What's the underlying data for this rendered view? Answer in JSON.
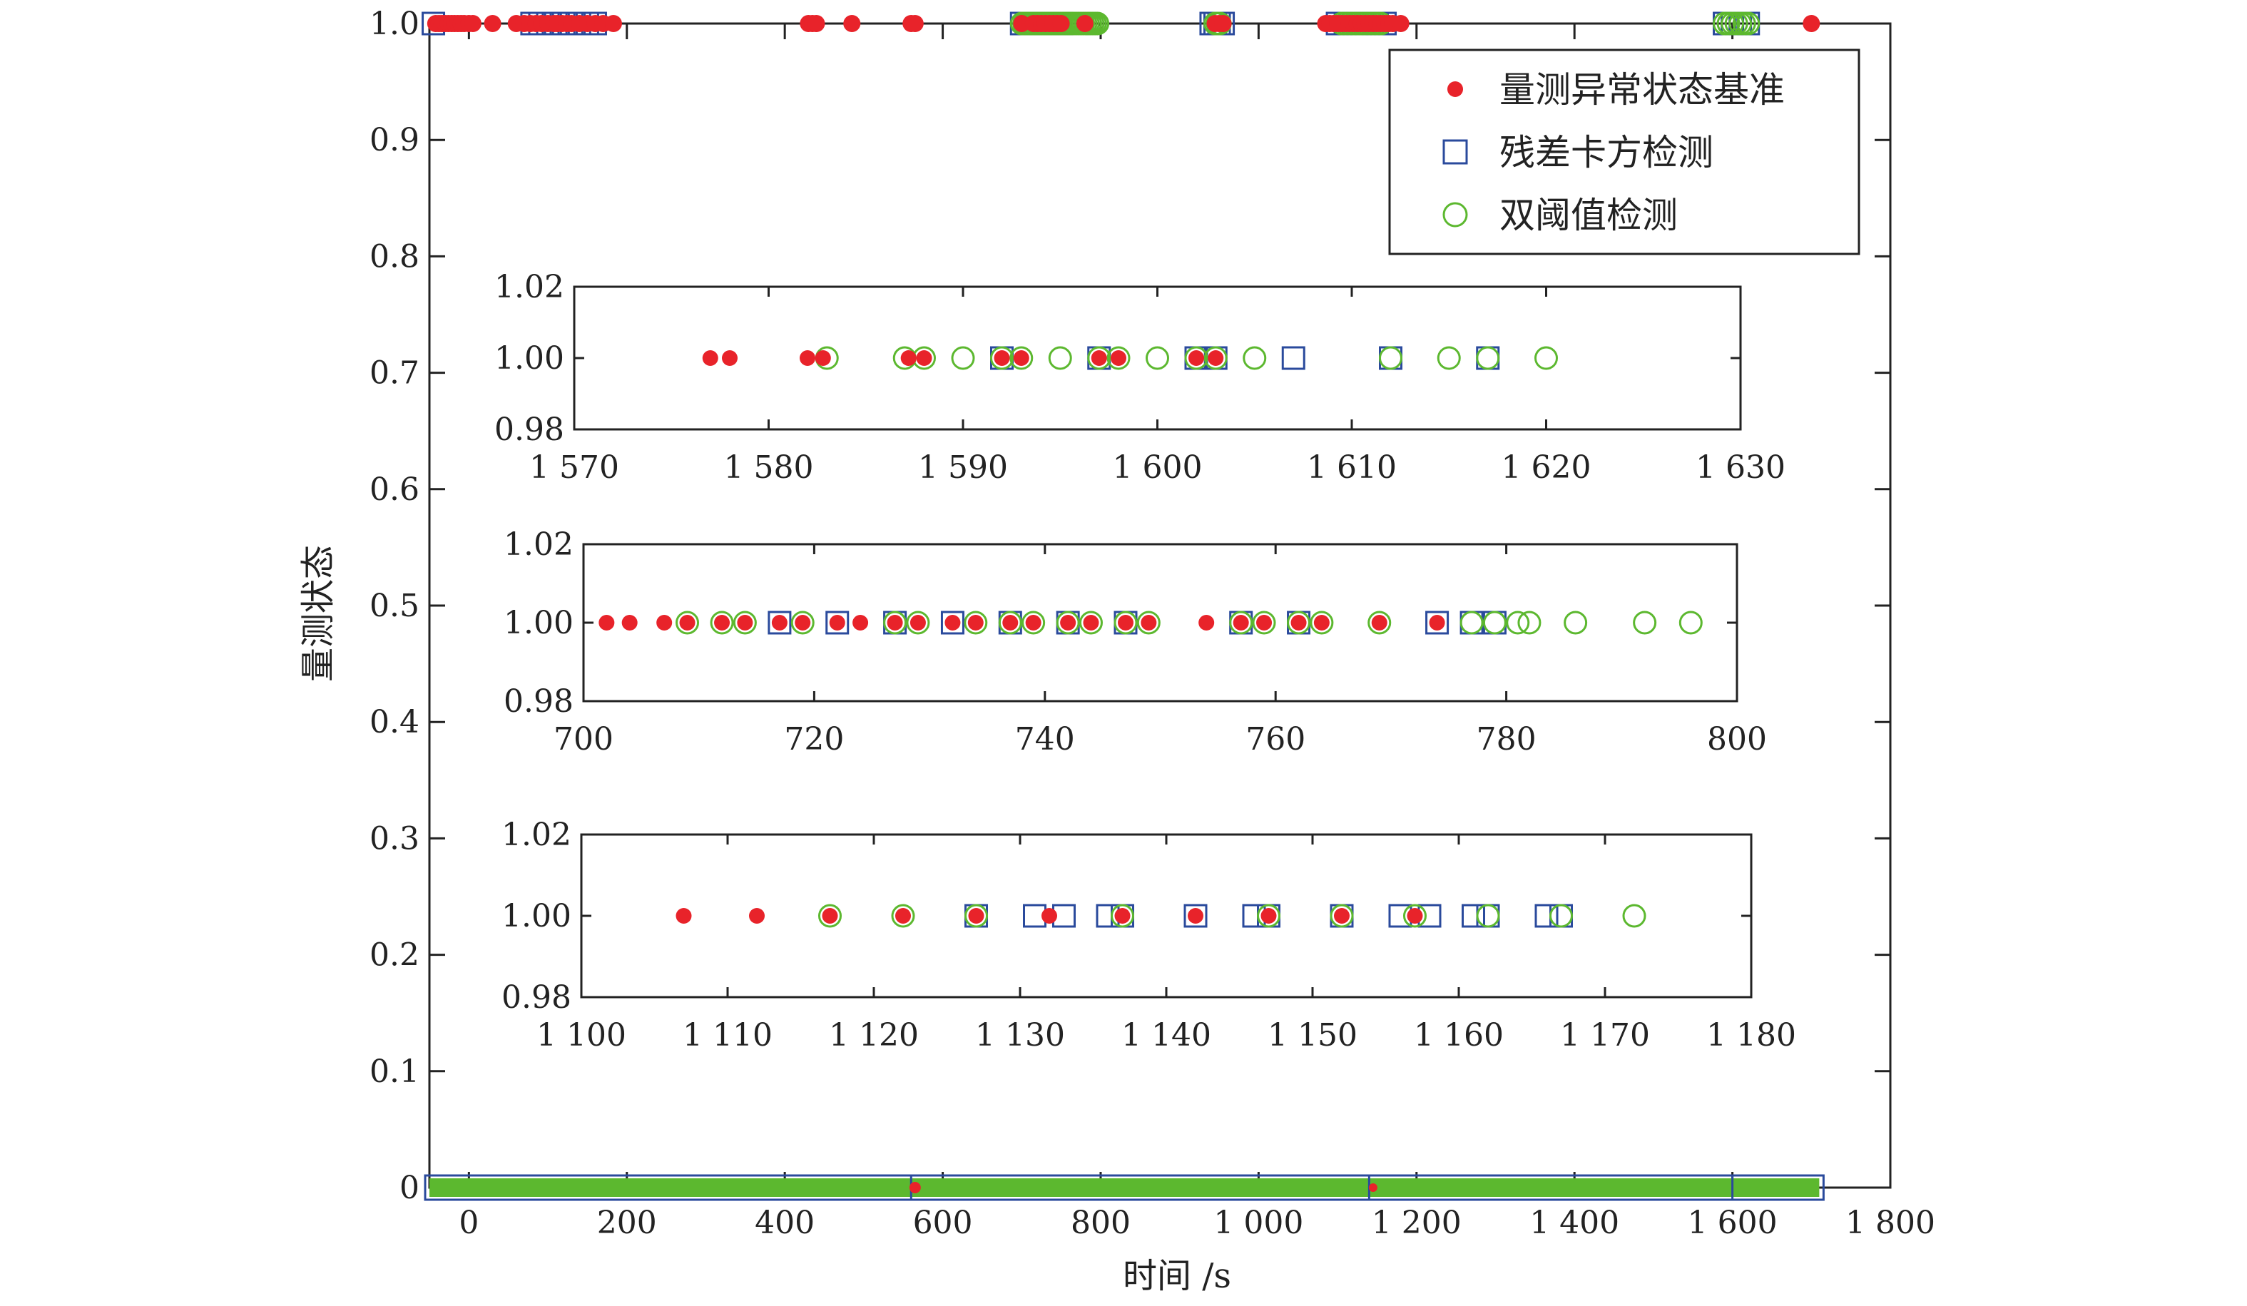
{
  "chart_data": [
    {
      "type": "scatter",
      "role": "main",
      "xlabel": "时间 /s",
      "ylabel": "量测状态",
      "xlim": [
        -50,
        1800
      ],
      "ylim": [
        0,
        1.0
      ],
      "xticks": [
        0,
        200,
        400,
        600,
        800,
        1000,
        1200,
        1400,
        1600,
        1800
      ],
      "xtick_labels": [
        "0",
        "200",
        "400",
        "600",
        "800",
        "1 000",
        "1 200",
        "1 400",
        "1 600",
        "1 800"
      ],
      "yticks": [
        0,
        0.1,
        0.2,
        0.3,
        0.4,
        0.5,
        0.6,
        0.7,
        0.8,
        0.9,
        1.0
      ],
      "ytick_labels": [
        "0",
        "0.1",
        "0.2",
        "0.3",
        "0.4",
        "0.5",
        "0.6",
        "0.7",
        "0.8",
        "0.9",
        "1.0"
      ],
      "legend": {
        "position": "top-right",
        "entries": [
          {
            "name": "量测异常状态基准",
            "marker": "filled-circle",
            "color": "#e8232a"
          },
          {
            "name": "残差卡方检测",
            "marker": "square",
            "color": "#2a4a9c"
          },
          {
            "name": "双阈值检测",
            "marker": "circle",
            "color": "#5cb82f"
          }
        ]
      },
      "series": [
        {
          "name": "量测异常状态基准",
          "color": "#e8232a",
          "x": [
            -42,
            -38,
            -34,
            -30,
            -26,
            -22,
            -18,
            -14,
            -10,
            -6,
            0,
            5,
            30,
            60,
            70,
            78,
            85,
            92,
            100,
            108,
            112,
            118,
            124,
            130,
            140,
            150,
            160,
            170,
            183,
            430,
            435,
            440,
            485,
            560,
            565,
            700,
            715,
            720,
            725,
            730,
            735,
            740,
            745,
            750,
            780,
            945,
            950,
            955,
            1085,
            1090,
            1095,
            1100,
            1105,
            1110,
            1115,
            1120,
            1125,
            1130,
            1135,
            1140,
            1145,
            1150,
            1155,
            1160,
            1165,
            1170,
            1180,
            1700
          ],
          "y": [
            1,
            1,
            1,
            1,
            1,
            1,
            1,
            1,
            1,
            1,
            1,
            1,
            1,
            1,
            1,
            1,
            1,
            1,
            1,
            1,
            1,
            1,
            1,
            1,
            1,
            1,
            1,
            1,
            1,
            1,
            1,
            1,
            1,
            1,
            1,
            1,
            1,
            1,
            1,
            1,
            1,
            1,
            1,
            1,
            1,
            1,
            1,
            1,
            1,
            1,
            1,
            1,
            1,
            1,
            1,
            1,
            1,
            1,
            1,
            1,
            1,
            1,
            1,
            1,
            1,
            1,
            1,
            1
          ]
        },
        {
          "name": "残差卡方检测",
          "color": "#2a4a9c",
          "x": [
            -45,
            80,
            90,
            100,
            110,
            120,
            130,
            140,
            150,
            160,
            700,
            710,
            720,
            730,
            740,
            750,
            940,
            945,
            950,
            955,
            1100,
            1110,
            1120,
            1130,
            1140,
            1150,
            1160,
            1590,
            1600,
            1610,
            1620
          ],
          "y": [
            1,
            1,
            1,
            1,
            1,
            1,
            1,
            1,
            1,
            1,
            1,
            1,
            1,
            1,
            1,
            1,
            1,
            1,
            1,
            1,
            1,
            1,
            1,
            1,
            1,
            1,
            1,
            1,
            1,
            1,
            1
          ]
        },
        {
          "name": "双阈值检测",
          "color": "#5cb82f",
          "x": [
            700,
            703,
            706,
            709,
            712,
            715,
            718,
            721,
            724,
            727,
            730,
            733,
            736,
            739,
            742,
            745,
            748,
            751,
            754,
            757,
            760,
            763,
            766,
            769,
            772,
            775,
            778,
            781,
            784,
            787,
            790,
            793,
            796,
            945,
            948,
            951,
            1105,
            1110,
            1115,
            1120,
            1125,
            1130,
            1135,
            1140,
            1145,
            1150,
            1155,
            1590,
            1595,
            1600,
            1605,
            1610,
            1615,
            1620
          ],
          "y": [
            1,
            1,
            1,
            1,
            1,
            1,
            1,
            1,
            1,
            1,
            1,
            1,
            1,
            1,
            1,
            1,
            1,
            1,
            1,
            1,
            1,
            1,
            1,
            1,
            1,
            1,
            1,
            1,
            1,
            1,
            1,
            1,
            1,
            1,
            1,
            1,
            1,
            1,
            1,
            1,
            1,
            1,
            1,
            1,
            1,
            1,
            1,
            1,
            1,
            1,
            1,
            1,
            1,
            1
          ]
        }
      ],
      "baseline_band": {
        "y": 0,
        "x_range": [
          -50,
          1710
        ]
      }
    },
    {
      "type": "scatter",
      "role": "inset-top",
      "xlim": [
        1570,
        1630
      ],
      "ylim": [
        0.98,
        1.02
      ],
      "xticks": [
        1570,
        1580,
        1590,
        1600,
        1610,
        1620,
        1630
      ],
      "xtick_labels": [
        "1 570",
        "1 580",
        "1 590",
        "1 600",
        "1 610",
        "1 620",
        "1 630"
      ],
      "yticks": [
        0.98,
        1.0,
        1.02
      ],
      "ytick_labels": [
        "0.98",
        "1.00",
        "1.02"
      ],
      "series": [
        {
          "name": "量测异常状态基准",
          "x": [
            1577,
            1578,
            1582,
            1582.8,
            1587.2,
            1588,
            1592,
            1593,
            1597,
            1598,
            1602,
            1603
          ],
          "y": [
            1,
            1,
            1,
            1,
            1,
            1,
            1,
            1,
            1,
            1,
            1,
            1
          ]
        },
        {
          "name": "残差卡方检测",
          "x": [
            1592,
            1597,
            1602,
            1603,
            1607,
            1612,
            1617
          ],
          "y": [
            1,
            1,
            1,
            1,
            1,
            1,
            1
          ]
        },
        {
          "name": "双阈值检测",
          "x": [
            1583,
            1587,
            1588,
            1590,
            1592,
            1593,
            1595,
            1597,
            1598,
            1600,
            1602,
            1603,
            1605,
            1612,
            1615,
            1617,
            1620
          ],
          "y": [
            1,
            1,
            1,
            1,
            1,
            1,
            1,
            1,
            1,
            1,
            1,
            1,
            1,
            1,
            1,
            1,
            1
          ]
        }
      ]
    },
    {
      "type": "scatter",
      "role": "inset-middle",
      "xlim": [
        700,
        800
      ],
      "ylim": [
        0.98,
        1.02
      ],
      "xticks": [
        700,
        720,
        740,
        760,
        780,
        800
      ],
      "xtick_labels": [
        "700",
        "720",
        "740",
        "760",
        "780",
        "800"
      ],
      "yticks": [
        0.98,
        1.0,
        1.02
      ],
      "ytick_labels": [
        "0.98",
        "1.00",
        "1.02"
      ],
      "series": [
        {
          "name": "量测异常状态基准",
          "x": [
            702,
            704,
            707,
            709,
            712,
            714,
            717,
            719,
            722,
            724,
            727,
            729,
            732,
            734,
            737,
            739,
            742,
            744,
            747,
            749,
            754,
            757,
            759,
            762,
            764,
            769,
            774
          ],
          "y": [
            1,
            1,
            1,
            1,
            1,
            1,
            1,
            1,
            1,
            1,
            1,
            1,
            1,
            1,
            1,
            1,
            1,
            1,
            1,
            1,
            1,
            1,
            1,
            1,
            1,
            1,
            1
          ]
        },
        {
          "name": "残差卡方检测",
          "x": [
            717,
            722,
            727,
            732,
            737,
            742,
            747,
            757,
            762,
            774,
            777,
            779
          ],
          "y": [
            1,
            1,
            1,
            1,
            1,
            1,
            1,
            1,
            1,
            1,
            1,
            1
          ]
        },
        {
          "name": "双阈值检测",
          "x": [
            709,
            712,
            714,
            719,
            727,
            729,
            734,
            737,
            739,
            742,
            744,
            747,
            749,
            757,
            759,
            762,
            764,
            769,
            777,
            779,
            781,
            782,
            786,
            792,
            796
          ],
          "y": [
            1,
            1,
            1,
            1,
            1,
            1,
            1,
            1,
            1,
            1,
            1,
            1,
            1,
            1,
            1,
            1,
            1,
            1,
            1,
            1,
            1,
            1,
            1,
            1,
            1
          ]
        }
      ]
    },
    {
      "type": "scatter",
      "role": "inset-bottom",
      "xlim": [
        1100,
        1180
      ],
      "ylim": [
        0.98,
        1.02
      ],
      "xticks": [
        1100,
        1110,
        1120,
        1130,
        1140,
        1150,
        1160,
        1170,
        1180
      ],
      "xtick_labels": [
        "1 100",
        "1 110",
        "1 120",
        "1 130",
        "1 140",
        "1 150",
        "1 160",
        "1 170",
        "1 180"
      ],
      "yticks": [
        0.98,
        1.0,
        1.02
      ],
      "ytick_labels": [
        "0.98",
        "1.00",
        "1.02"
      ],
      "series": [
        {
          "name": "量测异常状态基准",
          "x": [
            1107,
            1112,
            1117,
            1122,
            1127,
            1132,
            1137,
            1142,
            1147,
            1152,
            1157
          ],
          "y": [
            1,
            1,
            1,
            1,
            1,
            1,
            1,
            1,
            1,
            1,
            1
          ]
        },
        {
          "name": "残差卡方检测",
          "x": [
            1127,
            1131,
            1133,
            1136,
            1137,
            1142,
            1146,
            1147,
            1152,
            1156,
            1158,
            1161,
            1162,
            1166,
            1167
          ],
          "y": [
            1,
            1,
            1,
            1,
            1,
            1,
            1,
            1,
            1,
            1,
            1,
            1,
            1,
            1,
            1
          ]
        },
        {
          "name": "双阈值检测",
          "x": [
            1117,
            1122,
            1127,
            1137,
            1147,
            1152,
            1157,
            1162,
            1167,
            1172
          ],
          "y": [
            1,
            1,
            1,
            1,
            1,
            1,
            1,
            1,
            1,
            1
          ]
        }
      ]
    }
  ]
}
